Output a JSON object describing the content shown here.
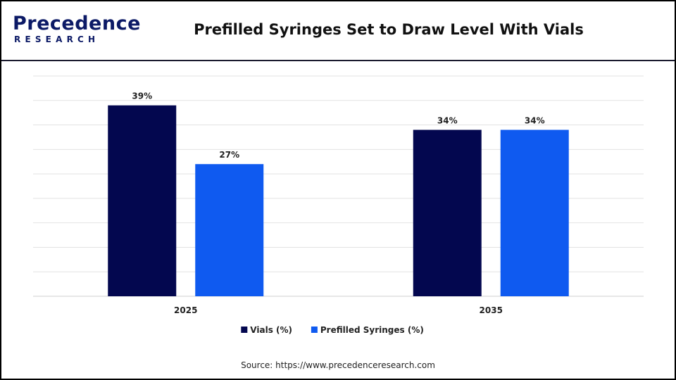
{
  "brand": {
    "logo_main": "Precedence",
    "logo_sub": "RESEARCH"
  },
  "source_text": "Source: https://www.precedenceresearch.com",
  "chart_data": {
    "type": "bar",
    "title": "Prefilled Syringes Set to Draw Level With Vials",
    "categories": [
      "2025",
      "2035"
    ],
    "series": [
      {
        "name": "Vials (%)",
        "values": [
          39,
          34
        ],
        "labels": [
          "39%",
          "34%"
        ],
        "color": "#03074f"
      },
      {
        "name": "Prefilled Syringes (%)",
        "values": [
          27,
          34
        ],
        "labels": [
          "27%",
          "34%"
        ],
        "color": "#0f5af0"
      }
    ],
    "ylim": [
      0,
      45
    ],
    "grid": true,
    "legend": "bottom"
  }
}
